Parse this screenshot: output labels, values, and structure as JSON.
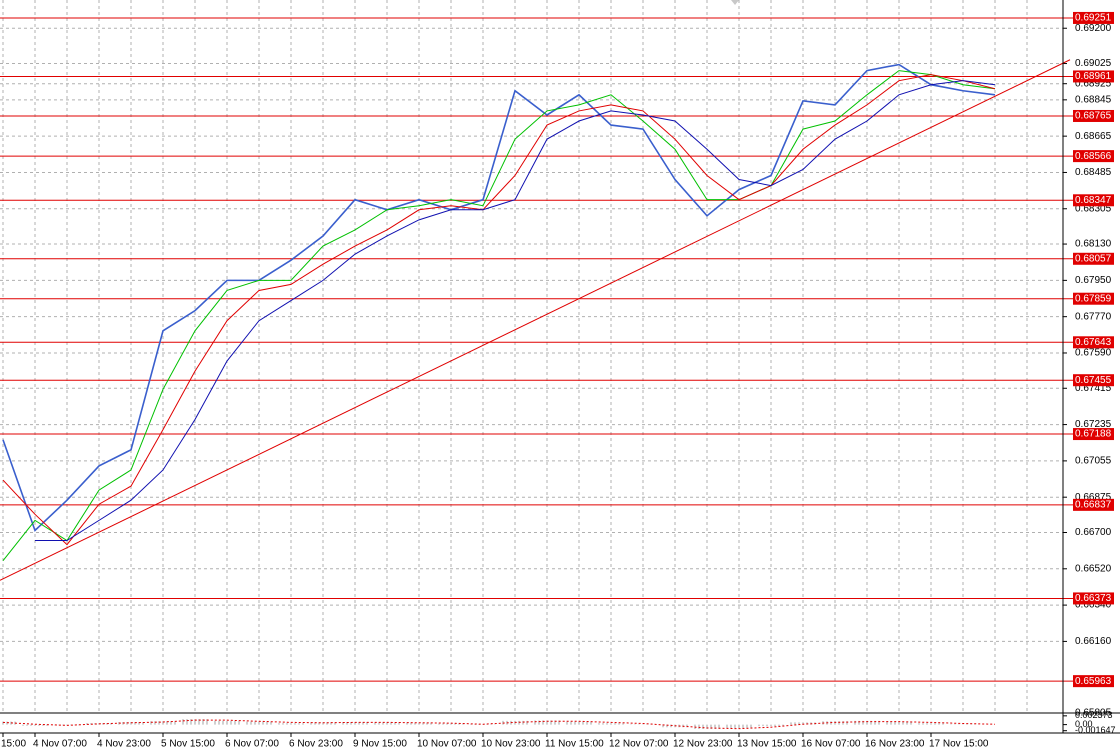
{
  "chart_data": [
    {
      "type": "line",
      "categories": [
        "15:00",
        "4 Nov 07:00",
        null,
        "4 Nov 23:00",
        null,
        "5 Nov 15:00",
        null,
        "6 Nov 07:00",
        null,
        "6 Nov 23:00",
        null,
        "9 Nov 15:00",
        null,
        "10 Nov 07:00",
        null,
        "10 Nov 23:00",
        null,
        "11 Nov 15:00",
        null,
        "12 Nov 07:00",
        null,
        "12 Nov 23:00",
        null,
        "13 Nov 15:00",
        null,
        "16 Nov 07:00",
        null,
        "16 Nov 23:00",
        null,
        "17 Nov 15:00",
        null,
        null,
        null
      ],
      "series": [
        {
          "color": "#3a5fcd",
          "values": [
            0.6716,
            0.6671,
            0.6686,
            0.6703,
            0.6711,
            0.677,
            0.678,
            0.6795,
            0.6795,
            0.6805,
            0.6817,
            0.6835,
            0.683,
            0.6835,
            0.683,
            0.6835,
            0.6889,
            0.6877,
            0.6887,
            0.6872,
            0.687,
            0.6845,
            0.6827,
            0.684,
            0.6847,
            0.6884,
            0.6882,
            0.6899,
            0.6902,
            0.6892,
            0.6889,
            0.6887,
            null
          ]
        },
        {
          "color": "#00c000",
          "values": [
            0.6656,
            0.6676,
            0.6666,
            0.6691,
            0.6701,
            0.6741,
            0.677,
            0.679,
            0.6795,
            0.6795,
            0.6812,
            0.682,
            0.683,
            0.6832,
            0.6835,
            0.6832,
            0.6865,
            0.6879,
            0.6882,
            0.6887,
            0.6874,
            0.686,
            0.6835,
            0.6835,
            0.6842,
            0.687,
            0.6874,
            0.6887,
            0.6899,
            0.6897,
            0.6892,
            0.689,
            null
          ]
        },
        {
          "color": "#e00000",
          "values": [
            0.6696,
            0.6679,
            0.6664,
            0.6684,
            0.6693,
            0.6721,
            0.675,
            0.6775,
            0.679,
            0.6793,
            0.6803,
            0.6812,
            0.682,
            0.683,
            0.6832,
            0.683,
            0.6847,
            0.6872,
            0.6879,
            0.6882,
            0.6879,
            0.6865,
            0.6847,
            0.6835,
            0.6842,
            0.686,
            0.6872,
            0.6882,
            0.6894,
            0.6897,
            0.6894,
            0.689,
            null
          ]
        },
        {
          "color": "#1010b0",
          "values": [
            null,
            0.6666,
            0.6666,
            0.6676,
            0.6686,
            0.6701,
            0.6726,
            0.6755,
            0.6775,
            0.6785,
            0.6795,
            0.6808,
            0.6817,
            0.6825,
            0.683,
            0.683,
            0.6835,
            0.6865,
            0.6874,
            0.6879,
            0.6877,
            0.6874,
            0.686,
            0.6845,
            0.6842,
            0.685,
            0.6865,
            0.6874,
            0.6887,
            0.6892,
            0.6894,
            0.6892,
            null
          ]
        }
      ],
      "levels": {
        "color": "#e00000",
        "values": [
          0.69251,
          0.68961,
          0.68765,
          0.68566,
          0.68347,
          0.68057,
          0.67859,
          0.67643,
          0.67455,
          0.67188,
          0.66837,
          0.66373,
          0.65963
        ]
      },
      "trendline": {
        "color": "#e00000",
        "values": [
          0.6647,
          0.6894
        ]
      },
      "ylim": [
        0.6581,
        0.6934
      ],
      "yticks": [
        {
          "value": 0.692,
          "label": "0.69200"
        },
        {
          "value": 0.69025,
          "label": "0.69025"
        },
        {
          "value": 0.68925,
          "label": "0.68925"
        },
        {
          "value": 0.68845,
          "label": "0.68845"
        },
        {
          "value": 0.68665,
          "label": "0.68665"
        },
        {
          "value": 0.68485,
          "label": "0.68485"
        },
        {
          "value": 0.68305,
          "label": "0.68305"
        },
        {
          "value": 0.6813,
          "label": "0.68130"
        },
        {
          "value": 0.6795,
          "label": "0.67950"
        },
        {
          "value": 0.6777,
          "label": "0.67770"
        },
        {
          "value": 0.6759,
          "label": "0.67590"
        },
        {
          "value": 0.67415,
          "label": "0.67415"
        },
        {
          "value": 0.67235,
          "label": "0.67235"
        },
        {
          "value": 0.67055,
          "label": "0.67055"
        },
        {
          "value": 0.66875,
          "label": "0.66875"
        },
        {
          "value": 0.667,
          "label": "0.66700"
        },
        {
          "value": 0.6652,
          "label": "0.66520"
        },
        {
          "value": 0.6634,
          "label": "0.66340"
        },
        {
          "value": 0.6616,
          "label": "0.66160"
        },
        {
          "value": 0.65805,
          "label": "0.65805"
        }
      ],
      "grid": true
    },
    {
      "type": "histogram",
      "values": [
        0.0008,
        -0.0003,
        -0.0002,
        0.0004,
        0.0007,
        0.0009,
        0.0015,
        0.001,
        0.0008,
        0.0004,
        0.0006,
        0.0007,
        0.0006,
        0.0005,
        0.0003,
        -0.0001,
        0.001,
        0.0011,
        0.0008,
        0.0004,
        0.0001,
        -0.0007,
        -0.0012,
        -0.001,
        -0.0004,
        0.0006,
        0.0009,
        0.001,
        0.0008,
        0.0004,
        0.0001,
        0.0,
        null
      ],
      "color": "#a0a0a0",
      "signal": {
        "color": "#e00000",
        "values": [
          0.0006,
          0.0001,
          -0.0002,
          0.0002,
          0.0005,
          0.0007,
          0.0012,
          0.0012,
          0.0009,
          0.0006,
          0.0005,
          0.0006,
          0.0006,
          0.0005,
          0.0004,
          0.0001,
          0.0006,
          0.0009,
          0.0009,
          0.0006,
          0.0003,
          -0.0003,
          -0.0009,
          -0.0011,
          -0.0007,
          0.0001,
          0.0006,
          0.0008,
          0.0008,
          0.0006,
          0.0003,
          0.0001,
          null
        ]
      },
      "ylim": [
        -0.002,
        0.0026
      ],
      "yticks": [
        0.002373,
        {
          "value": 0,
          "label": "0.00"
        },
        -0.001647
      ]
    }
  ]
}
